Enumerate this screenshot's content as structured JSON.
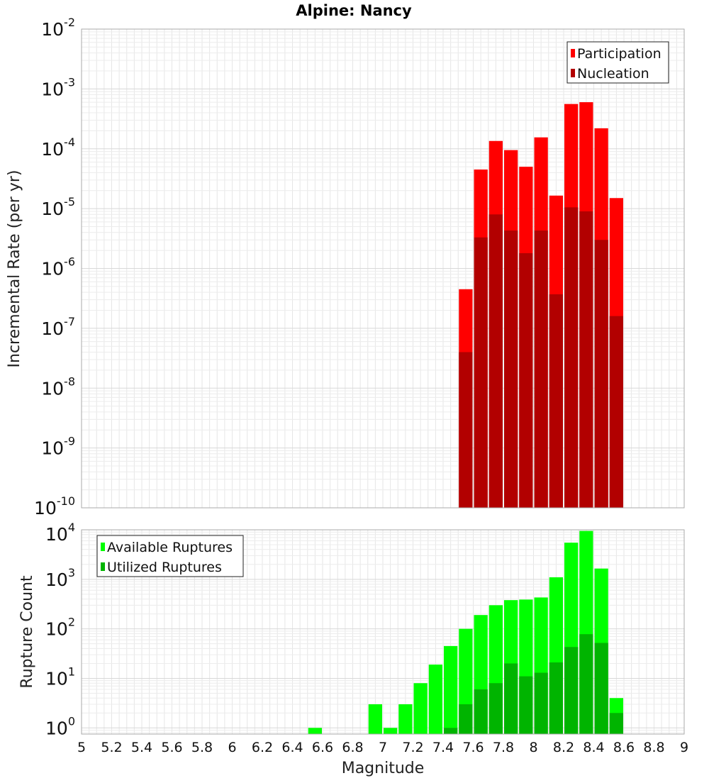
{
  "chart_data": [
    {
      "type": "bar",
      "title": "Alpine: Nancy",
      "xlabel": "",
      "ylabel": "Incremental Rate (per yr)",
      "y_scale": "log",
      "ylim": [
        1e-10,
        0.01
      ],
      "xlim": [
        5,
        9
      ],
      "y_tick_exponents": [
        "-2",
        "-3",
        "-4",
        "-5",
        "-6",
        "-7",
        "-8",
        "-9",
        "-10"
      ],
      "grid": true,
      "legend_position": "top-right",
      "bar_width": 0.1,
      "x": [
        7.55,
        7.65,
        7.75,
        7.85,
        7.95,
        8.05,
        8.15,
        8.25,
        8.35,
        8.45,
        8.55
      ],
      "series": [
        {
          "name": "Participation",
          "color": "#ff0000",
          "values": [
            4.5e-07,
            4.5e-05,
            0.000135,
            9.5e-05,
            5e-05,
            0.000155,
            1.65e-05,
            0.00056,
            0.0006,
            0.00022,
            1.5e-05
          ]
        },
        {
          "name": "Nucleation",
          "color": "#b20000",
          "values": [
            4e-08,
            3.3e-06,
            8e-06,
            4.3e-06,
            1.8e-06,
            4.3e-06,
            3.7e-07,
            1.05e-05,
            9e-06,
            3e-06,
            1.6e-07
          ]
        }
      ]
    },
    {
      "type": "bar",
      "title": "",
      "xlabel": "Magnitude",
      "ylabel": "Rupture Count",
      "y_scale": "log",
      "ylim": [
        0.75,
        10000
      ],
      "xlim": [
        5,
        9
      ],
      "x_ticks": [
        "5",
        "5.2",
        "5.4",
        "5.6",
        "5.8",
        "6",
        "6.2",
        "6.4",
        "6.6",
        "6.8",
        "7",
        "7.2",
        "7.4",
        "7.6",
        "7.8",
        "8",
        "8.2",
        "8.4",
        "8.6",
        "8.8",
        "9"
      ],
      "y_tick_exponents": [
        "4",
        "3",
        "2",
        "1",
        "0"
      ],
      "grid": true,
      "legend_position": "top-left",
      "bar_width": 0.1,
      "series": [
        {
          "name": "Available Ruptures",
          "color": "#00ff00",
          "x": [
            6.55,
            6.95,
            7.05,
            7.15,
            7.25,
            7.35,
            7.45,
            7.55,
            7.65,
            7.75,
            7.85,
            7.95,
            8.05,
            8.15,
            8.25,
            8.35,
            8.45,
            8.55
          ],
          "values": [
            1,
            3,
            1,
            3,
            8,
            19,
            45,
            100,
            190,
            300,
            380,
            390,
            430,
            1100,
            5500,
            9500,
            1650,
            4
          ]
        },
        {
          "name": "Utilized Ruptures",
          "color": "#00b400",
          "x": [
            7.45,
            7.55,
            7.65,
            7.75,
            7.85,
            7.95,
            8.05,
            8.15,
            8.25,
            8.35,
            8.45,
            8.55
          ],
          "values": [
            1,
            3,
            6,
            8,
            20,
            11,
            13,
            21,
            43,
            78,
            52,
            2
          ]
        }
      ]
    }
  ]
}
